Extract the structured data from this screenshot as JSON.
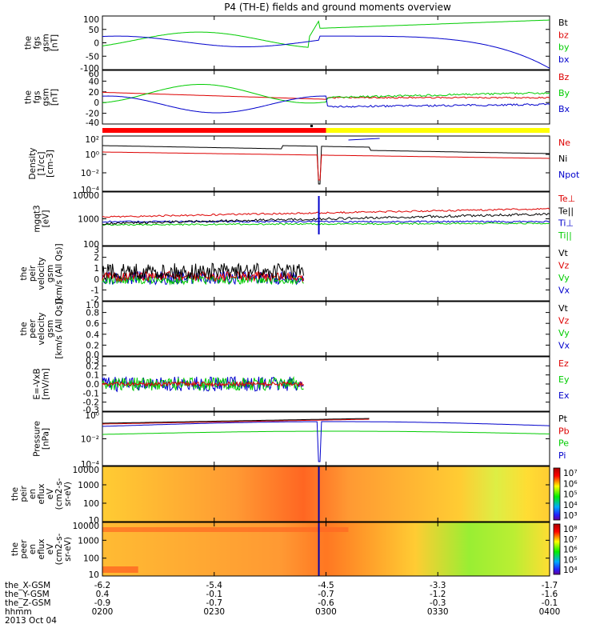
{
  "chart_data": {
    "type": "line",
    "title": "P4 (TH-E) fields and ground moments overview",
    "date": "2013 Oct 04",
    "time_range": [
      "0200",
      "0400"
    ],
    "panels": [
      {
        "key": "fgs_gsm",
        "ylabel": [
          "the",
          "fgs",
          "gsm",
          "[nT]"
        ],
        "yticks": [
          "100",
          "50",
          "0",
          "-50",
          "-100"
        ],
        "ylim": [
          -100,
          100
        ],
        "legend": [
          {
            "label": "Bt",
            "color": "#000000"
          },
          {
            "label": "bz",
            "color": "#dd0000"
          },
          {
            "label": "by",
            "color": "#00cc00"
          },
          {
            "label": "bx",
            "color": "#0000cc"
          }
        ]
      },
      {
        "key": "fgs_gse",
        "ylabel": [
          "the",
          "fgs",
          "gsm",
          "[nT]"
        ],
        "yticks": [
          "60",
          "40",
          "20",
          "0",
          "-20",
          "-40"
        ],
        "ylim": [
          -50,
          65
        ],
        "legend": [
          {
            "label": "Bz",
            "color": "#dd0000"
          },
          {
            "label": "By",
            "color": "#00cc00"
          },
          {
            "label": "Bx",
            "color": "#0000cc"
          }
        ]
      },
      {
        "key": "density",
        "ylabel": [
          "Density",
          "[1/cc]",
          "[cm-3]"
        ],
        "yticks": [
          "10²",
          "10⁰",
          "10⁻²",
          "10⁻⁴"
        ],
        "legend": [
          {
            "label": "Ne",
            "color": "#dd0000"
          },
          {
            "label": "Ni",
            "color": "#000000"
          },
          {
            "label": "Npot",
            "color": "#0000cc"
          }
        ]
      },
      {
        "key": "temperature",
        "ylabel": [
          "mgqt3",
          "[eV]"
        ],
        "yticks": [
          "10000",
          "1000",
          "100"
        ],
        "legend": [
          {
            "label": "Te⊥",
            "color": "#dd0000"
          },
          {
            "label": "Te||",
            "color": "#000000"
          },
          {
            "label": "Ti⊥",
            "color": "#0000cc"
          },
          {
            "label": "Ti||",
            "color": "#00cc00"
          }
        ]
      },
      {
        "key": "peir_velocity",
        "ylabel": [
          "the",
          "peir",
          "velocity",
          "gsm",
          "[km/s (All Qs)]"
        ],
        "yticks": [
          "3",
          "2",
          "1",
          "0",
          "-1",
          "-2"
        ],
        "ylim": [
          -2,
          3
        ],
        "legend": [
          {
            "label": "Vt",
            "color": "#000000"
          },
          {
            "label": "Vz",
            "color": "#dd0000"
          },
          {
            "label": "Vy",
            "color": "#00cc00"
          },
          {
            "label": "Vx",
            "color": "#0000cc"
          }
        ]
      },
      {
        "key": "peer_velocity",
        "ylabel": [
          "the",
          "peer",
          "velocity",
          "gsm",
          "[km/s (All Qs)]"
        ],
        "yticks": [
          "1.0",
          "0.8",
          "0.6",
          "0.4",
          "0.2",
          "0.0"
        ],
        "ylim": [
          0,
          1
        ],
        "legend": [
          {
            "label": "Vt",
            "color": "#000000"
          },
          {
            "label": "Vz",
            "color": "#dd0000"
          },
          {
            "label": "Vy",
            "color": "#00cc00"
          },
          {
            "label": "Vx",
            "color": "#0000cc"
          }
        ]
      },
      {
        "key": "efield",
        "ylabel": [
          "E=-VxB",
          "[mV/m]"
        ],
        "yticks": [
          "0.3",
          "0.2",
          "0.1",
          "0.0",
          "-0.1",
          "-0.2",
          "-0.3"
        ],
        "ylim": [
          -0.3,
          0.3
        ],
        "legend": [
          {
            "label": "Ez",
            "color": "#dd0000"
          },
          {
            "label": "Ey",
            "color": "#00cc00"
          },
          {
            "label": "Ex",
            "color": "#0000cc"
          }
        ]
      },
      {
        "key": "pressure",
        "ylabel": [
          "Pressure",
          "[nPa]"
        ],
        "yticks": [
          "10⁰",
          "10⁻²",
          "10⁻⁴"
        ],
        "legend": [
          {
            "label": "Pt",
            "color": "#000000"
          },
          {
            "label": "Pb",
            "color": "#dd0000"
          },
          {
            "label": "Pe",
            "color": "#00cc00"
          },
          {
            "label": "Pi",
            "color": "#0000cc"
          }
        ]
      },
      {
        "key": "peir_spec",
        "ylabel": [
          "the",
          "peir",
          "en",
          "eflux",
          "eV",
          "(cm2-s-",
          "sr-eV)"
        ],
        "yticks": [
          "10000",
          "1000",
          "100",
          "10"
        ],
        "colorbar": [
          "10⁷",
          "10⁶",
          "10⁵",
          "10⁴",
          "10³"
        ]
      },
      {
        "key": "peer_spec",
        "ylabel": [
          "the",
          "peer",
          "en",
          "eflux",
          "eV",
          "(cm2-s-",
          "sr-eV)"
        ],
        "yticks": [
          "10000",
          "1000",
          "100",
          "10"
        ],
        "colorbar": [
          "10⁸",
          "10⁷",
          "10⁶",
          "10⁵",
          "10⁴"
        ]
      }
    ],
    "x_axis": {
      "rows": [
        {
          "label": "the_X-GSM",
          "values": [
            "-6.2",
            "-5.4",
            "-4.5",
            "-3.3",
            "-1.7"
          ]
        },
        {
          "label": "the_Y-GSM",
          "values": [
            "0.4",
            "-0.1",
            "-0.7",
            "-1.2",
            "-1.6"
          ]
        },
        {
          "label": "the_Z-GSM",
          "values": [
            "-0.9",
            "-0.7",
            "-0.6",
            "-0.3",
            "-0.1"
          ]
        },
        {
          "label": "hhmm",
          "values": [
            "0200",
            "0230",
            "0300",
            "0330",
            "0400"
          ]
        }
      ]
    },
    "mode_bar": {
      "segments": [
        {
          "color": "#ff0000",
          "from": 0,
          "to": 0.5
        },
        {
          "color": "#ffff00",
          "from": 0.5,
          "to": 1
        }
      ]
    }
  }
}
